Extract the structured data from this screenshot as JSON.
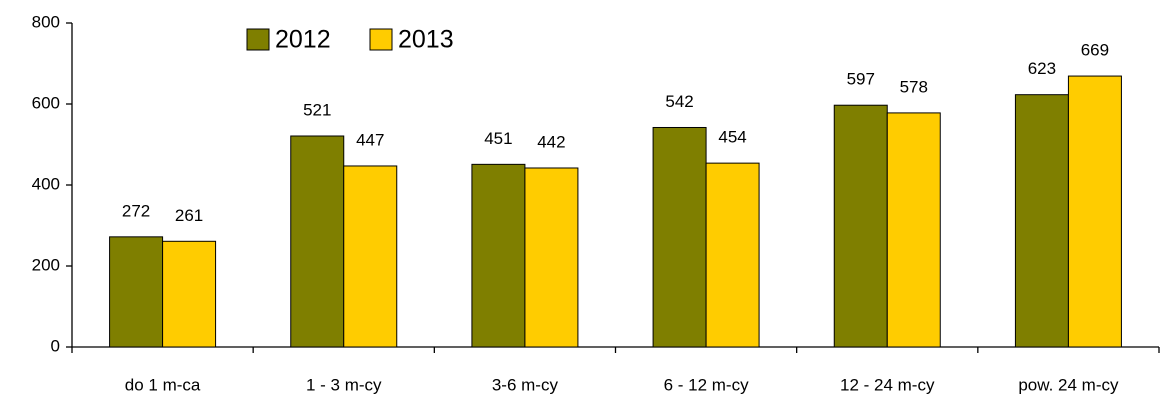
{
  "chart_data": {
    "type": "bar",
    "categories": [
      "do 1 m-ca",
      "1 - 3 m-cy",
      "3-6 m-cy",
      "6 - 12 m-cy",
      "12 - 24 m-cy",
      "pow. 24 m-cy"
    ],
    "series": [
      {
        "name": "2012",
        "color": "#7f7f00",
        "values": [
          272,
          521,
          451,
          542,
          597,
          623
        ]
      },
      {
        "name": "2013",
        "color": "#ffcc00",
        "values": [
          261,
          447,
          442,
          454,
          578,
          669
        ]
      }
    ],
    "ylim": [
      0,
      800
    ],
    "yticks": [
      0,
      200,
      400,
      600,
      800
    ],
    "grid": false,
    "legend": "top-left"
  }
}
